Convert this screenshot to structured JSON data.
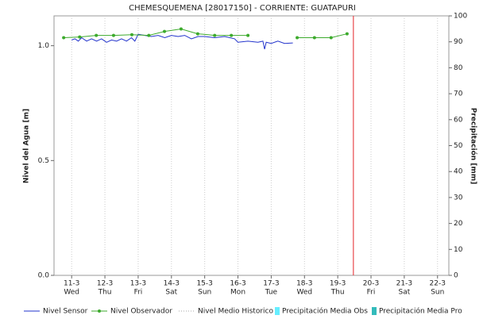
{
  "chart_data": {
    "type": "line",
    "title": "CHEMESQUEMENA [28017150] - CORRIENTE: GUATAPURI",
    "y_label": "Nivel del Agua [m]",
    "y2_label": "Precipitación [mm]",
    "xlim": [
      10.47,
      22.34
    ],
    "xticks": [
      {
        "value": 11,
        "label": "11-3",
        "weekday": "Wed"
      },
      {
        "value": 12,
        "label": "12-3",
        "weekday": "Thu"
      },
      {
        "value": 13,
        "label": "13-3",
        "weekday": "Fri"
      },
      {
        "value": 14,
        "label": "14-3",
        "weekday": "Sat"
      },
      {
        "value": 15,
        "label": "15-3",
        "weekday": "Sun"
      },
      {
        "value": 16,
        "label": "16-3",
        "weekday": "Mon"
      },
      {
        "value": 17,
        "label": "17-3",
        "weekday": "Tue"
      },
      {
        "value": 18,
        "label": "18-3",
        "weekday": "Wed"
      },
      {
        "value": 19,
        "label": "19-3",
        "weekday": "Thu"
      },
      {
        "value": 20,
        "label": "20-3",
        "weekday": "Fri"
      },
      {
        "value": 21,
        "label": "21-3",
        "weekday": "Sat"
      },
      {
        "value": 22,
        "label": "22-3",
        "weekday": "Sun"
      }
    ],
    "ylim": [
      0,
      1.13
    ],
    "yticks": [
      {
        "value": 0,
        "label": "0.0"
      },
      {
        "value": 0.5,
        "label": "0.5"
      },
      {
        "value": 1,
        "label": "1.0"
      }
    ],
    "y2lim": [
      0,
      100
    ],
    "y2ticks": [
      0,
      10,
      20,
      30,
      40,
      50,
      60,
      70,
      80,
      90,
      100
    ],
    "grid": true,
    "current_time_x": 19.47,
    "current_time_color": "#e8474c",
    "series": [
      {
        "name": "Nivel Sensor",
        "color": "#2233cc",
        "style": "line",
        "x": [
          11.0,
          11.1,
          11.2,
          11.3,
          11.45,
          11.6,
          11.75,
          11.9,
          12.05,
          12.2,
          12.35,
          12.5,
          12.65,
          12.8,
          12.9,
          13.0,
          13.2,
          13.4,
          13.6,
          13.8,
          14.0,
          14.2,
          14.4,
          14.6,
          14.8,
          15.0,
          15.3,
          15.6,
          15.9,
          16.0,
          16.3,
          16.6,
          16.75,
          16.8,
          16.85,
          17.0,
          17.2,
          17.4,
          17.65
        ],
        "values": [
          1.025,
          1.03,
          1.02,
          1.035,
          1.02,
          1.03,
          1.02,
          1.03,
          1.015,
          1.025,
          1.02,
          1.03,
          1.02,
          1.035,
          1.02,
          1.05,
          1.045,
          1.04,
          1.045,
          1.035,
          1.045,
          1.04,
          1.045,
          1.03,
          1.04,
          1.04,
          1.035,
          1.04,
          1.03,
          1.015,
          1.02,
          1.015,
          1.02,
          0.985,
          1.015,
          1.01,
          1.02,
          1.01,
          1.012
        ]
      },
      {
        "name": "Nivel Observador",
        "color": "#3caa2c",
        "style": "marker-line",
        "x": [
          10.76,
          11.24,
          11.74,
          12.26,
          12.81,
          13.32,
          13.79,
          14.29,
          14.79,
          15.3,
          15.8,
          16.3,
          17.3,
          17.78,
          18.3,
          18.8,
          19.28
        ],
        "values": [
          1.035,
          1.038,
          1.045,
          1.045,
          1.048,
          1.045,
          1.062,
          1.073,
          1.052,
          1.045,
          1.045,
          1.045,
          null,
          1.035,
          1.035,
          1.035,
          1.052
        ]
      },
      {
        "name": "Nivel Medio Historico",
        "color": "#aaaaaa",
        "style": "dotted",
        "x": [],
        "values": []
      },
      {
        "name": "Precipitación Media Obs",
        "color": "#66eeff",
        "style": "bar",
        "axis": "y2",
        "x": [],
        "values": []
      },
      {
        "name": "Precipitación Media Pro",
        "color": "#33bbbb",
        "style": "bar",
        "axis": "y2",
        "x": [],
        "values": []
      }
    ]
  }
}
